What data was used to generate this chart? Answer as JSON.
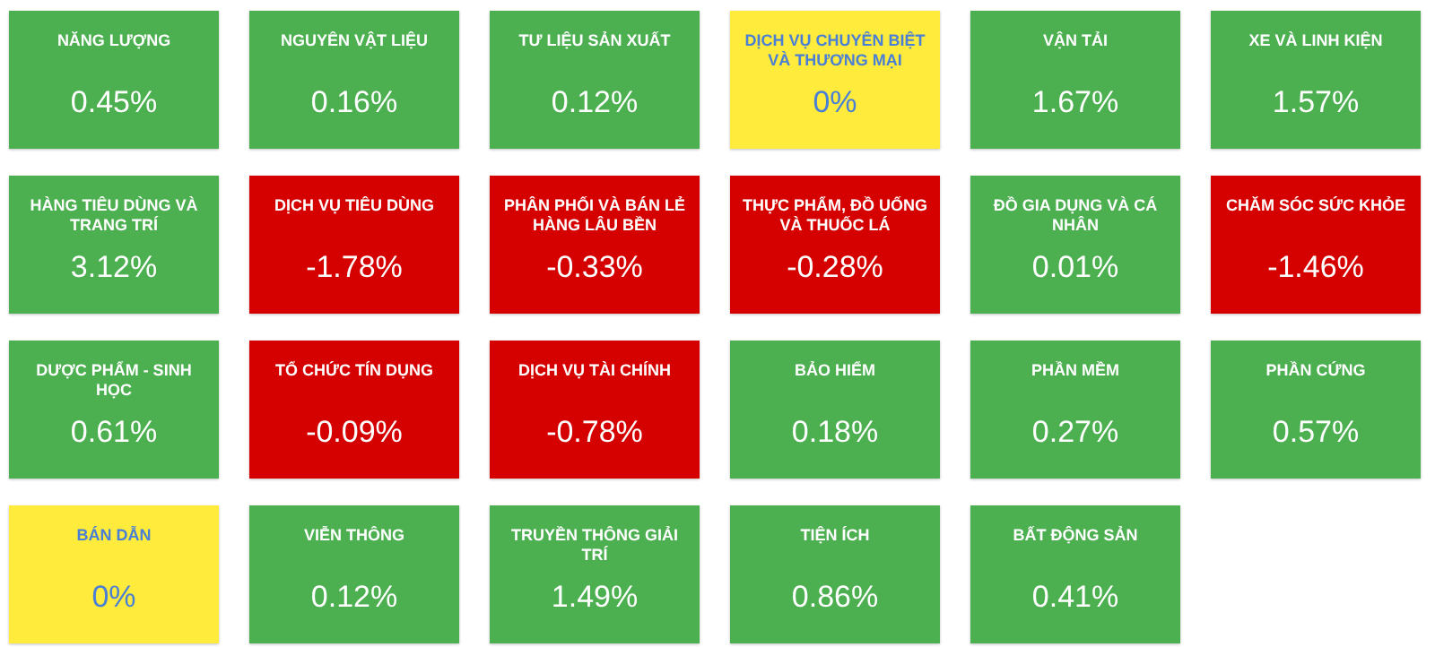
{
  "chart_data": {
    "type": "other",
    "categories": [
      "NĂNG LƯỢNG",
      "NGUYÊN VẬT LIỆU",
      "TƯ LIỆU SẢN XUẤT",
      "DỊCH VỤ CHUYÊN BIỆT VÀ THƯƠNG MẠI",
      "VẬN TẢI",
      "XE VÀ LINH KIỆN",
      "HÀNG TIÊU DÙNG VÀ TRANG TRÍ",
      "DỊCH VỤ TIÊU DÙNG",
      "PHÂN PHỐI VÀ BÁN LẺ HÀNG LÂU BỀN",
      "THỰC PHẨM, ĐỒ UỐNG VÀ THUỐC LÁ",
      "ĐỒ GIA DỤNG VÀ CÁ NHÂN",
      "CHĂM SÓC SỨC KHỎE",
      "DƯỢC PHẨM - SINH HỌC",
      "TỔ CHỨC TÍN DỤNG",
      "DỊCH VỤ TÀI CHÍNH",
      "BẢO HIỂM",
      "PHẦN MỀM",
      "PHẦN CỨNG",
      "BÁN DẪN",
      "VIỄN THÔNG",
      "TRUYỀN THÔNG GIẢI TRÍ",
      "TIỆN ÍCH",
      "BẤT ĐỘNG SẢN"
    ],
    "values": [
      0.45,
      0.16,
      0.12,
      0,
      1.67,
      1.57,
      3.12,
      -1.78,
      -0.33,
      -0.28,
      0.01,
      -1.46,
      0.61,
      -0.09,
      -0.78,
      0.18,
      0.27,
      0.57,
      0,
      0.12,
      1.49,
      0.86,
      0.41
    ],
    "value_labels": [
      "0.45%",
      "0.16%",
      "0.12%",
      "0%",
      "1.67%",
      "1.57%",
      "3.12%",
      "-1.78%",
      "-0.33%",
      "-0.28%",
      "0.01%",
      "-1.46%",
      "0.61%",
      "-0.09%",
      "-0.78%",
      "0.18%",
      "0.27%",
      "0.57%",
      "0%",
      "0.12%",
      "1.49%",
      "0.86%",
      "0.41%"
    ]
  }
}
